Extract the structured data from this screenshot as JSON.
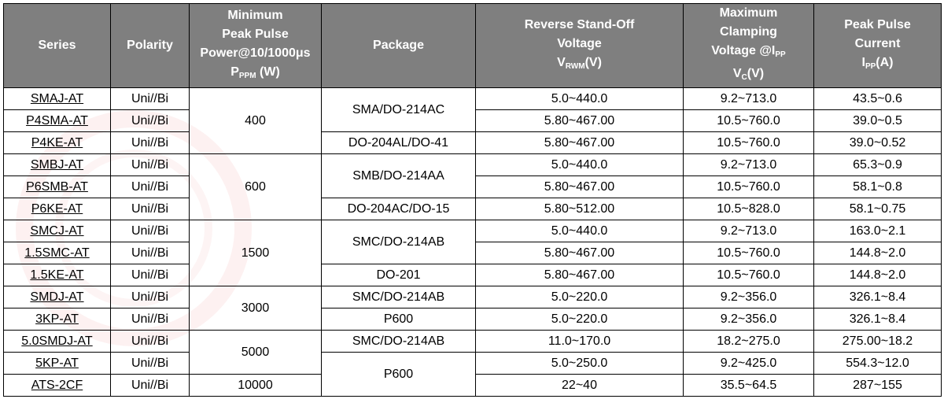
{
  "headers": {
    "series": "Series",
    "polarity": "Polarity",
    "power": [
      "Minimum",
      "Peak Pulse",
      "Power@10/1000μs"
    ],
    "power_sym": "P",
    "power_sub": "PPM",
    "power_unit": " (W)",
    "package": "Package",
    "vrwm": [
      "Reverse Stand-Off",
      "Voltage"
    ],
    "vrwm_sym": "V",
    "vrwm_sub": "RWM",
    "vrwm_unit": "(V)",
    "vc": [
      "Maximum",
      "Clamping"
    ],
    "vc_line3": "Voltage @I",
    "vc_line3_sub": "PP",
    "vc_sym": "V",
    "vc_sub": "C",
    "vc_unit": "(V)",
    "ipp": [
      "Peak Pulse",
      "Current"
    ],
    "ipp_sym": "I",
    "ipp_sub": "PP",
    "ipp_unit": "(A)"
  },
  "rows": [
    {
      "series": "SMAJ-AT",
      "polarity": "Uni//Bi",
      "vrwm": "5.0~440.0",
      "vc": "9.2~713.0",
      "ipp": "43.5~0.6"
    },
    {
      "series": "P4SMA-AT",
      "polarity": "Uni//Bi",
      "vrwm": "5.80~467.00",
      "vc": "10.5~760.0",
      "ipp": "39.0~0.5"
    },
    {
      "series": "P4KE-AT",
      "polarity": "Uni//Bi",
      "vrwm": "5.80~467.00",
      "vc": "10.5~760.0",
      "ipp": "39.0~0.52"
    },
    {
      "series": "SMBJ-AT",
      "polarity": "Uni//Bi",
      "vrwm": "5.0~440.0",
      "vc": "9.2~713.0",
      "ipp": "65.3~0.9"
    },
    {
      "series": "P6SMB-AT",
      "polarity": "Uni//Bi",
      "vrwm": "5.80~467.00",
      "vc": "10.5~760.0",
      "ipp": "58.1~0.8"
    },
    {
      "series": "P6KE-AT",
      "polarity": "Uni//Bi",
      "vrwm": "5.80~512.00",
      "vc": "10.5~828.0",
      "ipp": "58.1~0.75"
    },
    {
      "series": "SMCJ-AT",
      "polarity": "Uni//Bi",
      "vrwm": "5.0~440.0",
      "vc": "9.2~713.0",
      "ipp": "163.0~2.1"
    },
    {
      "series": "1.5SMC-AT",
      "polarity": "Uni//Bi",
      "vrwm": "5.80~467.00",
      "vc": "10.5~760.0",
      "ipp": "144.8~2.0"
    },
    {
      "series": "1.5KE-AT",
      "polarity": "Uni//Bi",
      "vrwm": "5.80~467.00",
      "vc": "10.5~760.0",
      "ipp": "144.8~2.0"
    },
    {
      "series": "SMDJ-AT",
      "polarity": "Uni//Bi",
      "vrwm": "5.0~220.0",
      "vc": "9.2~356.0",
      "ipp": "326.1~8.4"
    },
    {
      "series": "3KP-AT",
      "polarity": "Uni//Bi",
      "vrwm": "5.0~220.0",
      "vc": "9.2~356.0",
      "ipp": "326.1~8.4"
    },
    {
      "series": "5.0SMDJ-AT",
      "polarity": "Uni//Bi",
      "vrwm": "11.0~170.0",
      "vc": "18.2~275.0",
      "ipp": "275.00~18.2"
    },
    {
      "series": "5KP-AT",
      "polarity": "Uni//Bi",
      "vrwm": "5.0~250.0",
      "vc": "9.2~425.0",
      "ipp": "554.3~12.0"
    },
    {
      "series": "ATS-2CF",
      "polarity": "Uni//Bi",
      "vrwm": "22~40",
      "vc": "35.5~64.5",
      "ipp": "287~155"
    }
  ],
  "power_groups": [
    {
      "value": "400",
      "rows": 3
    },
    {
      "value": "600",
      "rows": 3
    },
    {
      "value": "1500",
      "rows": 3
    },
    {
      "value": "3000",
      "rows": 2
    },
    {
      "value": "5000",
      "rows": 2
    },
    {
      "value": "10000",
      "rows": 1
    }
  ],
  "package_groups": [
    {
      "value": "SMA/DO-214AC",
      "rows": 2
    },
    {
      "value": "DO-204AL/DO-41",
      "rows": 1
    },
    {
      "value": "SMB/DO-214AA",
      "rows": 2
    },
    {
      "value": "DO-204AC/DO-15",
      "rows": 1
    },
    {
      "value": "SMC/DO-214AB",
      "rows": 2
    },
    {
      "value": "DO-201",
      "rows": 1
    },
    {
      "value": "SMC/DO-214AB",
      "rows": 1
    },
    {
      "value": "P600",
      "rows": 1
    },
    {
      "value": "SMC/DO-214AB",
      "rows": 1
    },
    {
      "value": "P600",
      "rows": 2
    }
  ],
  "colors": {
    "header_bg": "#7f7f7f",
    "header_text": "#ffffff",
    "watermark": "#dc3c3c"
  }
}
